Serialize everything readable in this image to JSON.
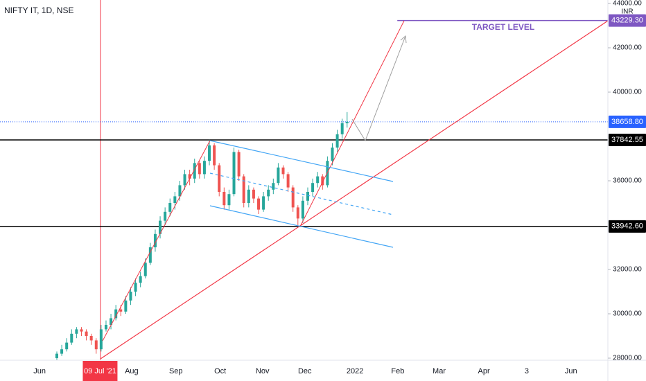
{
  "chart_data": {
    "type": "candlestick",
    "title": "NIFTY IT, 1D, NSE",
    "currency": "INR",
    "annotation": "TARGET LEVEL",
    "up_color": "#26a69a",
    "down_color": "#ef5350",
    "xlim": [
      -11.55,
      112
    ],
    "ylim": [
      27906.25,
      44156.25
    ],
    "xticks": [
      {
        "value": -3.5,
        "label": "Jun"
      },
      {
        "value": 8.8,
        "label": "09 Jul '21",
        "highlight": true
      },
      {
        "value": 15.2,
        "label": "Aug"
      },
      {
        "value": 24.2,
        "label": "Sep"
      },
      {
        "value": 33.2,
        "label": "Oct"
      },
      {
        "value": 41.8,
        "label": "Nov"
      },
      {
        "value": 50.4,
        "label": "Dec"
      },
      {
        "value": 60.6,
        "label": "2022"
      },
      {
        "value": 69.3,
        "label": "Feb"
      },
      {
        "value": 77.7,
        "label": "Mar"
      },
      {
        "value": 86.8,
        "label": "Apr"
      },
      {
        "value": 95.5,
        "label": "3"
      },
      {
        "value": 104.5,
        "label": "Jun"
      }
    ],
    "yticks": [
      {
        "value": 28000,
        "label": "28000.00"
      },
      {
        "value": 30000,
        "label": "30000.00"
      },
      {
        "value": 32000,
        "label": "32000.00"
      },
      {
        "value": 36000,
        "label": "36000.00"
      },
      {
        "value": 40000,
        "label": "40000.00"
      },
      {
        "value": 42000,
        "label": "42000.00"
      },
      {
        "value": 44000,
        "label": "44000.00"
      }
    ],
    "price_lines": [
      {
        "value": 43229.3,
        "label": "43229.30",
        "color": "#7e57c2",
        "style": "solid",
        "x_from": 69.2
      },
      {
        "value": 38658.8,
        "label": "38658.80",
        "color": "#2962ff",
        "style": "dotted"
      },
      {
        "value": 37842.55,
        "label": "37842.55",
        "color": "#000000",
        "style": "solid"
      },
      {
        "value": 33942.6,
        "label": "33942.60",
        "color": "#000000",
        "style": "solid"
      }
    ],
    "candles": [
      [
        28000,
        28300,
        27900,
        28200
      ],
      [
        28200,
        28600,
        28100,
        28400
      ],
      [
        28400,
        28900,
        28300,
        28700
      ],
      [
        28700,
        29300,
        28600,
        29100
      ],
      [
        29100,
        29400,
        28900,
        29300
      ],
      [
        29300,
        29400,
        29000,
        29200
      ],
      [
        29200,
        29300,
        28800,
        29000
      ],
      [
        29000,
        29100,
        28600,
        28800
      ],
      [
        28800,
        28900,
        28200,
        28400
      ],
      [
        28400,
        29500,
        28300,
        29300
      ],
      [
        29300,
        29700,
        29200,
        29500
      ],
      [
        29500,
        30000,
        29300,
        29800
      ],
      [
        29800,
        30400,
        29700,
        30200
      ],
      [
        30200,
        30400,
        29900,
        30100
      ],
      [
        30100,
        30800,
        30000,
        30600
      ],
      [
        30600,
        31200,
        30400,
        31000
      ],
      [
        31000,
        31600,
        30800,
        31400
      ],
      [
        31400,
        31900,
        31200,
        31700
      ],
      [
        31700,
        32500,
        31600,
        32300
      ],
      [
        32300,
        33200,
        32200,
        33000
      ],
      [
        33000,
        33800,
        32800,
        33600
      ],
      [
        33600,
        34400,
        33400,
        34200
      ],
      [
        34200,
        34800,
        34000,
        34600
      ],
      [
        34600,
        35200,
        34400,
        35000
      ],
      [
        35000,
        35500,
        34700,
        35300
      ],
      [
        35300,
        36000,
        35100,
        35800
      ],
      [
        35800,
        36500,
        35600,
        36300
      ],
      [
        36300,
        36500,
        35800,
        36100
      ],
      [
        36100,
        37000,
        35900,
        36800
      ],
      [
        36800,
        36900,
        36100,
        36300
      ],
      [
        36300,
        37100,
        36100,
        36900
      ],
      [
        36900,
        37850,
        36700,
        37600
      ],
      [
        37600,
        37700,
        36500,
        36700
      ],
      [
        36700,
        36800,
        35300,
        35500
      ],
      [
        35500,
        35700,
        34700,
        34900
      ],
      [
        34900,
        35600,
        34700,
        35400
      ],
      [
        35400,
        37500,
        35300,
        37300
      ],
      [
        37300,
        37400,
        36000,
        36200
      ],
      [
        36200,
        36300,
        34800,
        35000
      ],
      [
        35000,
        35800,
        34800,
        35600
      ],
      [
        35600,
        35700,
        35000,
        35200
      ],
      [
        35200,
        35300,
        34500,
        34700
      ],
      [
        34700,
        35500,
        34600,
        35300
      ],
      [
        35300,
        35800,
        35100,
        35600
      ],
      [
        35600,
        36100,
        35400,
        35900
      ],
      [
        35900,
        36800,
        35800,
        36600
      ],
      [
        36600,
        36700,
        36100,
        36300
      ],
      [
        36300,
        36400,
        35500,
        35700
      ],
      [
        35700,
        35800,
        34600,
        34800
      ],
      [
        34800,
        34900,
        34000,
        34300
      ],
      [
        34300,
        35300,
        34100,
        35100
      ],
      [
        35100,
        35700,
        34900,
        35500
      ],
      [
        35500,
        36100,
        35300,
        35900
      ],
      [
        35900,
        36400,
        35700,
        36200
      ],
      [
        36200,
        36300,
        35600,
        35800
      ],
      [
        35800,
        37100,
        35700,
        36900
      ],
      [
        36900,
        37700,
        36700,
        37500
      ],
      [
        37500,
        38300,
        37300,
        38100
      ],
      [
        38100,
        38800,
        37900,
        38600
      ],
      [
        38600,
        39100,
        38400,
        38658.8
      ]
    ]
  }
}
